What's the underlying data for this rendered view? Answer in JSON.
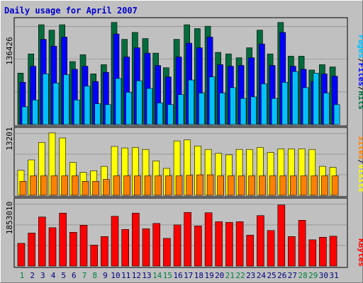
{
  "title": "Daily usage for April 2007",
  "colors": {
    "background": "#c0c0c0",
    "hits": "#006b3c",
    "files": "#0000ff",
    "pages": "#00c0ff",
    "visits": "#ffff00",
    "sites": "#ff8000",
    "kbytes": "#ff0000",
    "weekend_day": "#008040",
    "weekday_day": "#000080"
  },
  "chart_data": [
    {
      "type": "bar",
      "panel": "hits_files_pages",
      "ymax_label": "136426",
      "ylim": [
        0,
        136426
      ],
      "side_labels": [
        "Pages",
        "/",
        "Files",
        "/",
        "Hits"
      ],
      "categories": [
        "1",
        "2",
        "3",
        "4",
        "5",
        "6",
        "7",
        "8",
        "9",
        "10",
        "11",
        "12",
        "13",
        "14",
        "15",
        "16",
        "17",
        "18",
        "19",
        "20",
        "21",
        "22",
        "23",
        "24",
        "25",
        "26",
        "27",
        "28",
        "29",
        "30",
        "31"
      ],
      "series": [
        {
          "name": "Hits",
          "values": [
            67000,
            92000,
            130000,
            123000,
            130000,
            82000,
            91000,
            66000,
            78000,
            133000,
            111000,
            120000,
            112000,
            93000,
            74000,
            111000,
            130000,
            125000,
            128000,
            94000,
            92000,
            87000,
            100000,
            123000,
            92000,
            133000,
            89000,
            89000,
            71000,
            78000,
            75000
          ]
        },
        {
          "name": "Files",
          "values": [
            55000,
            76000,
            111000,
            102000,
            114000,
            72000,
            76000,
            56000,
            68000,
            118000,
            88000,
            100000,
            93000,
            77000,
            62000,
            88000,
            106000,
            100000,
            114000,
            78000,
            76000,
            77000,
            87000,
            105000,
            77000,
            120000,
            76000,
            72000,
            56000,
            66000,
            63000
          ]
        },
        {
          "name": "Pages",
          "values": [
            23000,
            32000,
            66000,
            54000,
            65000,
            32000,
            50000,
            27000,
            26000,
            60000,
            42000,
            57000,
            47000,
            28000,
            26000,
            39000,
            58000,
            41000,
            62000,
            41000,
            48000,
            34000,
            36000,
            53000,
            34000,
            55000,
            69000,
            48000,
            67000,
            41000,
            26000
          ]
        }
      ]
    },
    {
      "type": "bar",
      "panel": "visits_sites",
      "ymax_label": "13201",
      "ylim": [
        0,
        13201
      ],
      "side_labels": [
        "Sites",
        "/",
        "Visits"
      ],
      "categories": [
        "1",
        "2",
        "3",
        "4",
        "5",
        "6",
        "7",
        "8",
        "9",
        "10",
        "11",
        "12",
        "13",
        "14",
        "15",
        "16",
        "17",
        "18",
        "19",
        "20",
        "21",
        "22",
        "23",
        "24",
        "25",
        "26",
        "27",
        "28",
        "29",
        "30",
        "31"
      ],
      "series": [
        {
          "name": "Visits",
          "values": [
            5000,
            7100,
            10600,
            12500,
            11500,
            6600,
            4600,
            4900,
            5800,
            9800,
            9500,
            9600,
            9200,
            6900,
            5400,
            10900,
            11100,
            9900,
            9200,
            8400,
            8100,
            9200,
            9200,
            9600,
            8600,
            9300,
            9300,
            9300,
            9200,
            5800,
            5600
          ]
        },
        {
          "name": "Sites",
          "values": [
            2800,
            3900,
            3900,
            3900,
            3900,
            3900,
            2800,
            2800,
            3200,
            3900,
            3900,
            3900,
            3900,
            3900,
            3900,
            3900,
            4000,
            4100,
            4100,
            3900,
            3900,
            3900,
            3900,
            3900,
            3900,
            3900,
            3900,
            3900,
            3900,
            3900,
            3900
          ]
        }
      ]
    },
    {
      "type": "bar",
      "panel": "kbytes",
      "ymax_label": "1853010",
      "ylim": [
        0,
        1853010
      ],
      "side_labels": [
        "KBytes"
      ],
      "categories": [
        "1",
        "2",
        "3",
        "4",
        "5",
        "6",
        "7",
        "8",
        "9",
        "10",
        "11",
        "12",
        "13",
        "14",
        "15",
        "16",
        "17",
        "18",
        "19",
        "20",
        "21",
        "22",
        "23",
        "24",
        "25",
        "26",
        "27",
        "28",
        "29",
        "30",
        "31"
      ],
      "series": [
        {
          "name": "KBytes",
          "values": [
            640000,
            930000,
            1380000,
            1080000,
            1490000,
            950000,
            1150000,
            590000,
            830000,
            1400000,
            1030000,
            1490000,
            1050000,
            1200000,
            780000,
            1160000,
            1510000,
            1130000,
            1500000,
            1250000,
            1230000,
            1250000,
            870000,
            1420000,
            1000000,
            1720000,
            830000,
            1290000,
            740000,
            810000,
            840000
          ]
        }
      ]
    }
  ],
  "weekend_days": [
    1,
    7,
    8,
    14,
    15,
    21,
    22,
    28,
    29
  ]
}
